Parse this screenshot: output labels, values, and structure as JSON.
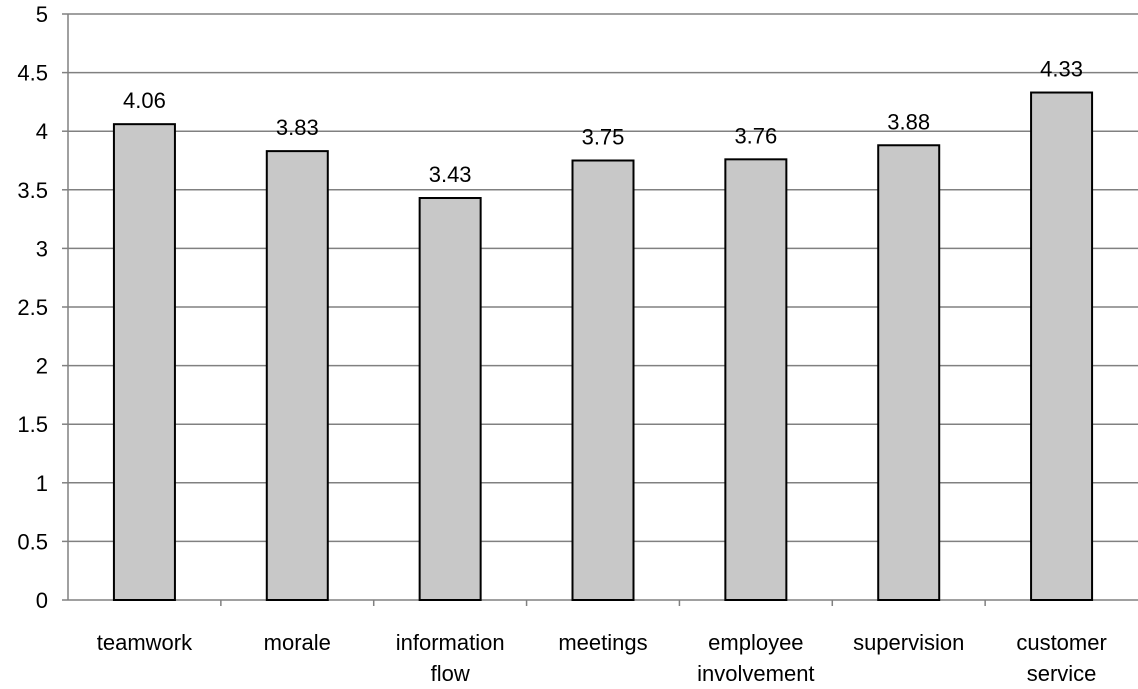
{
  "chart_data": {
    "type": "bar",
    "categories": [
      [
        "teamwork"
      ],
      [
        "morale"
      ],
      [
        "information",
        "flow"
      ],
      [
        "meetings"
      ],
      [
        "employee",
        "involvement"
      ],
      [
        "supervision"
      ],
      [
        "customer",
        "service"
      ]
    ],
    "values": [
      4.06,
      3.83,
      3.43,
      3.75,
      3.76,
      3.88,
      4.33
    ],
    "value_labels": [
      "4.06",
      "3.83",
      "3.43",
      "3.75",
      "3.76",
      "3.88",
      "4.33"
    ],
    "title": "",
    "xlabel": "",
    "ylabel": "",
    "ylim": [
      0,
      5
    ],
    "yticks": [
      "0",
      "0.5",
      "1",
      "1.5",
      "2",
      "2.5",
      "3",
      "3.5",
      "4",
      "4.5",
      "5"
    ],
    "grid": true,
    "legend": "none",
    "colors": {
      "bar_fill": "#c8c8c8",
      "bar_stroke": "#000000",
      "grid": "#808080",
      "axis": "#808080"
    }
  }
}
